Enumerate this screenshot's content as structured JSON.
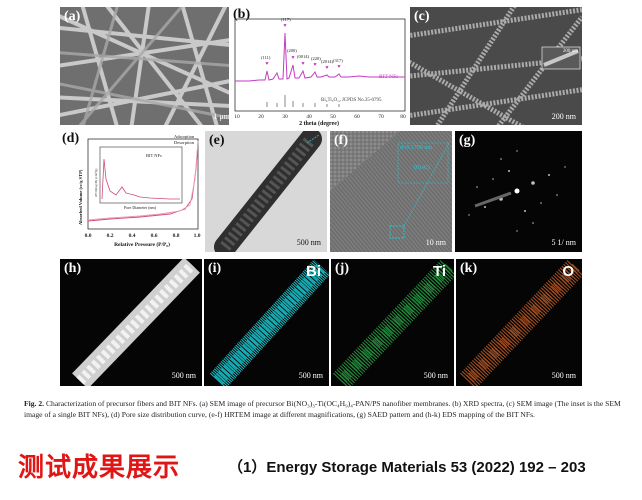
{
  "panels": {
    "a": {
      "label": "(a)",
      "scale": "1 μm"
    },
    "b": {
      "label": "(b)",
      "legend_sample": "BIT NFs",
      "legend_ref": "Bi₄Ti₃O₁₂ JCPDS No.35-0795",
      "peaks": [
        "(111)",
        "(200)",
        "(117)",
        "(0014)",
        "(220)",
        "(2014)",
        "(0020)",
        "(317)"
      ],
      "xlabel": "2 theta (degree)",
      "xticks": [
        "10",
        "20",
        "30",
        "40",
        "50",
        "60",
        "70",
        "80"
      ]
    },
    "c": {
      "label": "(c)",
      "scale": "200 nm",
      "inset_scale": "200 nm"
    },
    "d": {
      "label": "(d)",
      "legend": [
        "Adsorption",
        "Desorption"
      ],
      "inset_series": "BIT NFs",
      "inset_xlabel": "Pore Diameter (nm)",
      "inset_ylabel": "dV/d(log D) (cm³/g)",
      "xlabel": "Relative Pressure (P/P₀)",
      "ylabel": "Absorbed Volume (cc/g STP)",
      "xticks": [
        "0.0",
        "0.2",
        "0.4",
        "0.6",
        "0.8",
        "1.0"
      ]
    },
    "e": {
      "label": "(e)",
      "scale": "500 nm"
    },
    "f": {
      "label": "(f)",
      "scale": "10 nm",
      "dspacing": "d=0.1796 nm",
      "plane": "(0142)"
    },
    "g": {
      "label": "(g)",
      "scale": "5 1/ nm"
    },
    "h": {
      "label": "(h)",
      "scale": "500 nm"
    },
    "i": {
      "label": "(i)",
      "element": "Bi",
      "scale": "500 nm",
      "color": "#1fd0d8"
    },
    "j": {
      "label": "(j)",
      "element": "Ti",
      "scale": "500 nm",
      "color": "#2ea84a"
    },
    "k": {
      "label": "(k)",
      "element": "O",
      "scale": "500 nm",
      "color": "#c8602a"
    }
  },
  "caption": {
    "fig": "Fig. 2.",
    "text": "Characterization of precursor fibers and BIT NFs. (a) SEM image of precursor Bi(NO₃)₃-Ti(OC₄H₉)₄-PAN/PS nanofiber membranes. (b) XRD spectra, (c) SEM image (The inset is the SEM image of a single BIT NFs), (d) Pore size distribution curve, (e-f) HRTEM image at different magnifications, (g) SAED pattern and (h-k) EDS mapping of the BIT NFs."
  },
  "footer": {
    "title_cn": "测试成果展示",
    "reference": "（1）Energy Storage Materials 53 (2022) 192 – 203",
    "title_color": "#e01515"
  }
}
